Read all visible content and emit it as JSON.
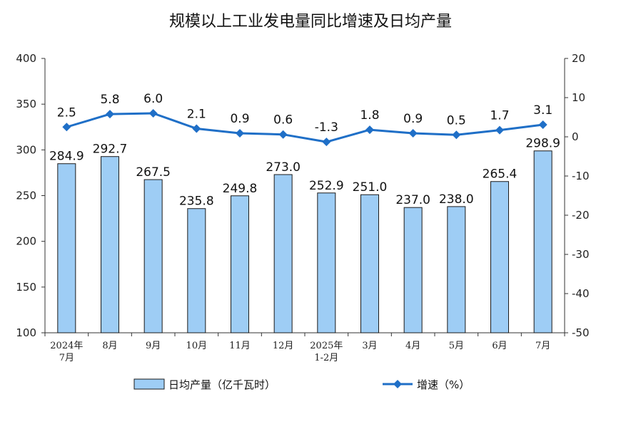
{
  "chart_data": {
    "type": "bar",
    "title": "规模以上工业发电量同比增速及日均产量",
    "categories": [
      "2024年\n7月",
      "8月",
      "9月",
      "10月",
      "11月",
      "12月",
      "2025年\n1-2月",
      "3月",
      "4月",
      "5月",
      "6月",
      "7月"
    ],
    "series": [
      {
        "name": "日均产量（亿千瓦时）",
        "type": "bar",
        "axis": "left",
        "values": [
          284.9,
          292.7,
          267.5,
          235.8,
          249.8,
          273.0,
          252.9,
          251.0,
          237.0,
          238.0,
          265.4,
          298.9
        ],
        "labels": [
          "284.9",
          "292.7",
          "267.5",
          "235.8",
          "249.8",
          "273.0",
          "252.9",
          "251.0",
          "237.0",
          "238.0",
          "265.4",
          "298.9"
        ],
        "color": "#9ecdf5"
      },
      {
        "name": "增速（%）",
        "type": "line",
        "axis": "right",
        "values": [
          2.5,
          5.8,
          6.0,
          2.1,
          0.9,
          0.6,
          -1.3,
          1.8,
          0.9,
          0.5,
          1.7,
          3.1
        ],
        "labels": [
          "2.5",
          "5.8",
          "6.0",
          "2.1",
          "0.9",
          "0.6",
          "-1.3",
          "1.8",
          "0.9",
          "0.5",
          "1.7",
          "3.1"
        ],
        "color": "#1f6fc7"
      }
    ],
    "y_left": {
      "min": 100,
      "max": 400,
      "ticks": [
        "100",
        "150",
        "200",
        "250",
        "300",
        "350",
        "400"
      ]
    },
    "y_right": {
      "min": -50,
      "max": 20,
      "ticks": [
        "-50",
        "-40",
        "-30",
        "-20",
        "-10",
        "0",
        "10",
        "20"
      ]
    },
    "legend_position": "bottom",
    "grid": false
  }
}
